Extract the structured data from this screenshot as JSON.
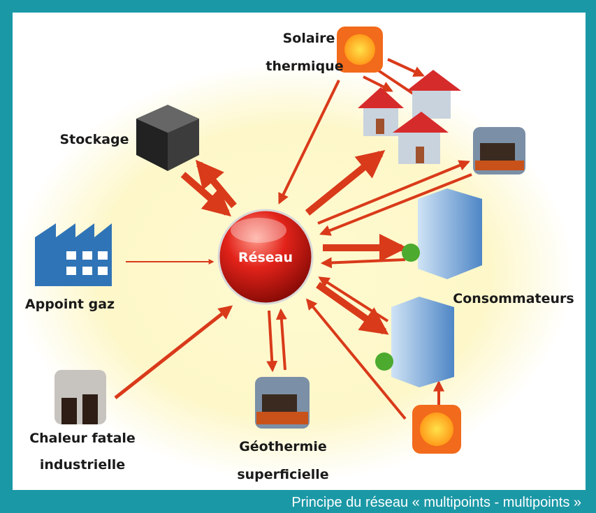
{
  "center": {
    "label": "Réseau"
  },
  "nodes": [
    {
      "lines": [
        "Solaire",
        "thermique"
      ]
    },
    {
      "lines": [
        "Stockage"
      ]
    },
    {
      "lines": [
        "Appoint gaz"
      ]
    },
    {
      "lines": [
        "Chaleur fatale",
        "industrielle"
      ]
    },
    {
      "lines": [
        "Géothermie",
        "superficielle"
      ]
    },
    {
      "lines": [
        "Consommateurs"
      ]
    }
  ],
  "caption": "Principe du réseau « multipoints - multipoints »"
}
